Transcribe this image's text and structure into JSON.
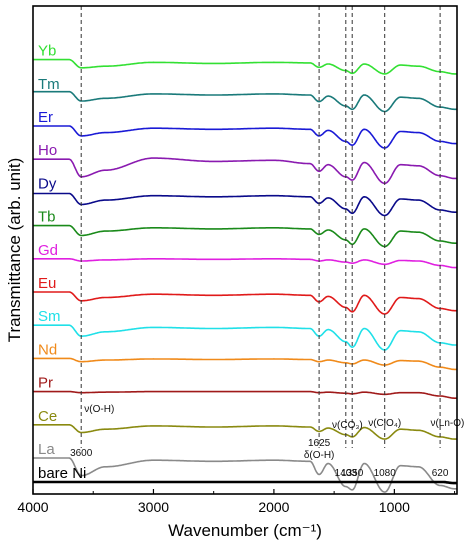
{
  "chart_data": {
    "type": "line",
    "xlabel": "Wavenumber (cm⁻¹)",
    "ylabel": "Transmittance (arb. unit)",
    "xlim": [
      4000,
      480
    ],
    "x_reversed": true,
    "xticks": [
      "4000",
      "3000",
      "2000",
      "1000"
    ],
    "xtick_values": [
      4000,
      3000,
      2000,
      1000
    ],
    "y_ticks_shown": false,
    "grid": false,
    "reference_lines": [
      3600,
      1625,
      1403,
      1350,
      1080,
      620
    ],
    "annotations": [
      {
        "text": "3600",
        "x": 3600
      },
      {
        "text": "ν(O-H)",
        "x": 3450
      },
      {
        "text": "1625",
        "x": 1625
      },
      {
        "text": "δ(O-H)",
        "x": 1625
      },
      {
        "text": "1403",
        "x": 1403
      },
      {
        "text": "ν(CO₃)",
        "x": 1390
      },
      {
        "text": "1350",
        "x": 1350
      },
      {
        "text": "ν(ClO₄)",
        "x": 1080
      },
      {
        "text": "1080",
        "x": 1080
      },
      {
        "text": "ν(Ln-O)",
        "x": 560
      },
      {
        "text": "620",
        "x": 620
      }
    ],
    "series": [
      {
        "name": "Yb",
        "color": "#33e033",
        "offset": 12,
        "points": [
          [
            4000,
            10
          ],
          [
            3700,
            10
          ],
          [
            3600,
            25
          ],
          [
            3400,
            22
          ],
          [
            3000,
            15
          ],
          [
            2500,
            17
          ],
          [
            2000,
            15
          ],
          [
            1700,
            16
          ],
          [
            1625,
            24
          ],
          [
            1550,
            18
          ],
          [
            1403,
            30
          ],
          [
            1350,
            35
          ],
          [
            1250,
            18
          ],
          [
            1080,
            36
          ],
          [
            950,
            20
          ],
          [
            800,
            22
          ],
          [
            620,
            32
          ],
          [
            500,
            36
          ]
        ]
      },
      {
        "name": "Tm",
        "color": "#1a7a7a",
        "offset": 11,
        "points": [
          [
            4000,
            8
          ],
          [
            3700,
            8
          ],
          [
            3600,
            25
          ],
          [
            3400,
            20
          ],
          [
            3000,
            12
          ],
          [
            2500,
            14
          ],
          [
            2000,
            12
          ],
          [
            1700,
            14
          ],
          [
            1625,
            26
          ],
          [
            1550,
            16
          ],
          [
            1403,
            34
          ],
          [
            1350,
            40
          ],
          [
            1250,
            14
          ],
          [
            1080,
            44
          ],
          [
            950,
            18
          ],
          [
            800,
            20
          ],
          [
            620,
            36
          ],
          [
            500,
            40
          ]
        ]
      },
      {
        "name": "Er",
        "color": "#1a1ad6",
        "offset": 10,
        "points": [
          [
            4000,
            10
          ],
          [
            3700,
            10
          ],
          [
            3600,
            28
          ],
          [
            3400,
            22
          ],
          [
            3000,
            14
          ],
          [
            2500,
            16
          ],
          [
            2000,
            14
          ],
          [
            1700,
            16
          ],
          [
            1625,
            28
          ],
          [
            1550,
            18
          ],
          [
            1403,
            38
          ],
          [
            1350,
            45
          ],
          [
            1250,
            16
          ],
          [
            1080,
            50
          ],
          [
            950,
            20
          ],
          [
            800,
            22
          ],
          [
            620,
            38
          ],
          [
            500,
            42
          ]
        ]
      },
      {
        "name": "Ho",
        "color": "#8a1ab0",
        "offset": 9,
        "points": [
          [
            4000,
            10
          ],
          [
            3700,
            10
          ],
          [
            3600,
            42
          ],
          [
            3400,
            30
          ],
          [
            3000,
            8
          ],
          [
            2500,
            14
          ],
          [
            2000,
            12
          ],
          [
            1700,
            18
          ],
          [
            1625,
            32
          ],
          [
            1550,
            20
          ],
          [
            1403,
            42
          ],
          [
            1350,
            48
          ],
          [
            1250,
            16
          ],
          [
            1080,
            54
          ],
          [
            950,
            20
          ],
          [
            800,
            22
          ],
          [
            620,
            40
          ],
          [
            500,
            45
          ]
        ]
      },
      {
        "name": "Dy",
        "color": "#0a0a8a",
        "offset": 8,
        "points": [
          [
            4000,
            12
          ],
          [
            3700,
            12
          ],
          [
            3600,
            32
          ],
          [
            3400,
            24
          ],
          [
            3000,
            16
          ],
          [
            2500,
            18
          ],
          [
            2000,
            16
          ],
          [
            1700,
            18
          ],
          [
            1625,
            30
          ],
          [
            1550,
            20
          ],
          [
            1403,
            40
          ],
          [
            1350,
            48
          ],
          [
            1250,
            18
          ],
          [
            1080,
            52
          ],
          [
            950,
            22
          ],
          [
            800,
            24
          ],
          [
            620,
            42
          ],
          [
            500,
            46
          ]
        ]
      },
      {
        "name": "Tb",
        "color": "#1a8a1a",
        "offset": 7,
        "points": [
          [
            4000,
            10
          ],
          [
            3700,
            10
          ],
          [
            3600,
            28
          ],
          [
            3400,
            20
          ],
          [
            3000,
            14
          ],
          [
            2500,
            16
          ],
          [
            2000,
            14
          ],
          [
            1700,
            16
          ],
          [
            1625,
            26
          ],
          [
            1550,
            18
          ],
          [
            1403,
            36
          ],
          [
            1350,
            44
          ],
          [
            1250,
            16
          ],
          [
            1080,
            48
          ],
          [
            950,
            20
          ],
          [
            800,
            22
          ],
          [
            620,
            38
          ],
          [
            500,
            42
          ]
        ]
      },
      {
        "name": "Gd",
        "color": "#e020e0",
        "offset": 6,
        "points": [
          [
            4000,
            10
          ],
          [
            3700,
            10
          ],
          [
            3600,
            14
          ],
          [
            3400,
            12
          ],
          [
            3000,
            10
          ],
          [
            2500,
            11
          ],
          [
            2000,
            10
          ],
          [
            1700,
            11
          ],
          [
            1625,
            14
          ],
          [
            1550,
            12
          ],
          [
            1403,
            16
          ],
          [
            1350,
            18
          ],
          [
            1250,
            12
          ],
          [
            1080,
            20
          ],
          [
            950,
            13
          ],
          [
            800,
            14
          ],
          [
            620,
            22
          ],
          [
            500,
            26
          ]
        ]
      },
      {
        "name": "Eu",
        "color": "#e01a1a",
        "offset": 5,
        "points": [
          [
            4000,
            10
          ],
          [
            3700,
            10
          ],
          [
            3600,
            26
          ],
          [
            3400,
            20
          ],
          [
            3000,
            14
          ],
          [
            2500,
            16
          ],
          [
            2000,
            14
          ],
          [
            1700,
            16
          ],
          [
            1625,
            28
          ],
          [
            1550,
            18
          ],
          [
            1403,
            38
          ],
          [
            1350,
            46
          ],
          [
            1250,
            16
          ],
          [
            1080,
            50
          ],
          [
            950,
            20
          ],
          [
            800,
            22
          ],
          [
            620,
            40
          ],
          [
            500,
            44
          ]
        ]
      },
      {
        "name": "Sm",
        "color": "#20e0e8",
        "offset": 4,
        "points": [
          [
            4000,
            10
          ],
          [
            3700,
            10
          ],
          [
            3600,
            30
          ],
          [
            3400,
            22
          ],
          [
            3000,
            14
          ],
          [
            2500,
            16
          ],
          [
            2000,
            14
          ],
          [
            1700,
            16
          ],
          [
            1625,
            30
          ],
          [
            1550,
            18
          ],
          [
            1403,
            40
          ],
          [
            1350,
            50
          ],
          [
            1250,
            16
          ],
          [
            1080,
            55
          ],
          [
            950,
            20
          ],
          [
            800,
            22
          ],
          [
            620,
            42
          ],
          [
            500,
            46
          ]
        ]
      },
      {
        "name": "Nd",
        "color": "#f08a1a",
        "offset": 3,
        "points": [
          [
            4000,
            10
          ],
          [
            3700,
            10
          ],
          [
            3600,
            16
          ],
          [
            3400,
            13
          ],
          [
            3000,
            11
          ],
          [
            2500,
            12
          ],
          [
            2000,
            11
          ],
          [
            1700,
            12
          ],
          [
            1625,
            16
          ],
          [
            1550,
            13
          ],
          [
            1403,
            18
          ],
          [
            1350,
            20
          ],
          [
            1250,
            13
          ],
          [
            1080,
            22
          ],
          [
            950,
            14
          ],
          [
            800,
            15
          ],
          [
            620,
            26
          ],
          [
            500,
            30
          ]
        ]
      },
      {
        "name": "Pr",
        "color": "#a01a1a",
        "offset": 2,
        "points": [
          [
            4000,
            10
          ],
          [
            3700,
            10
          ],
          [
            3600,
            12
          ],
          [
            3400,
            11
          ],
          [
            3000,
            10
          ],
          [
            2500,
            10
          ],
          [
            2000,
            10
          ],
          [
            1700,
            10
          ],
          [
            1625,
            12
          ],
          [
            1550,
            11
          ],
          [
            1403,
            13
          ],
          [
            1350,
            14
          ],
          [
            1250,
            11
          ],
          [
            1080,
            15
          ],
          [
            950,
            12
          ],
          [
            800,
            12
          ],
          [
            620,
            18
          ],
          [
            500,
            22
          ]
        ]
      },
      {
        "name": "Ce",
        "color": "#8a8a10",
        "offset": 1,
        "points": [
          [
            4000,
            10
          ],
          [
            3700,
            10
          ],
          [
            3600,
            24
          ],
          [
            3400,
            18
          ],
          [
            3000,
            12
          ],
          [
            2500,
            14
          ],
          [
            2000,
            12
          ],
          [
            1700,
            14
          ],
          [
            1625,
            22
          ],
          [
            1550,
            16
          ],
          [
            1403,
            28
          ],
          [
            1350,
            32
          ],
          [
            1250,
            15
          ],
          [
            1080,
            36
          ],
          [
            950,
            18
          ],
          [
            800,
            20
          ],
          [
            620,
            32
          ],
          [
            500,
            36
          ]
        ]
      },
      {
        "name": "La",
        "color": "#8a8a8a",
        "offset": 0,
        "points": [
          [
            4000,
            10
          ],
          [
            3700,
            10
          ],
          [
            3600,
            42
          ],
          [
            3400,
            26
          ],
          [
            3000,
            14
          ],
          [
            2500,
            16
          ],
          [
            2000,
            14
          ],
          [
            1700,
            16
          ],
          [
            1625,
            40
          ],
          [
            1550,
            20
          ],
          [
            1403,
            62
          ],
          [
            1350,
            68
          ],
          [
            1250,
            20
          ],
          [
            1080,
            72
          ],
          [
            950,
            24
          ],
          [
            800,
            26
          ],
          [
            620,
            60
          ],
          [
            500,
            66
          ]
        ]
      },
      {
        "name": "bare Ni",
        "color": "#000000",
        "offset": -1,
        "points": [
          [
            4000,
            10
          ],
          [
            3000,
            10
          ],
          [
            2000,
            10
          ],
          [
            1000,
            10
          ],
          [
            600,
            10
          ],
          [
            500,
            12
          ]
        ]
      }
    ]
  }
}
